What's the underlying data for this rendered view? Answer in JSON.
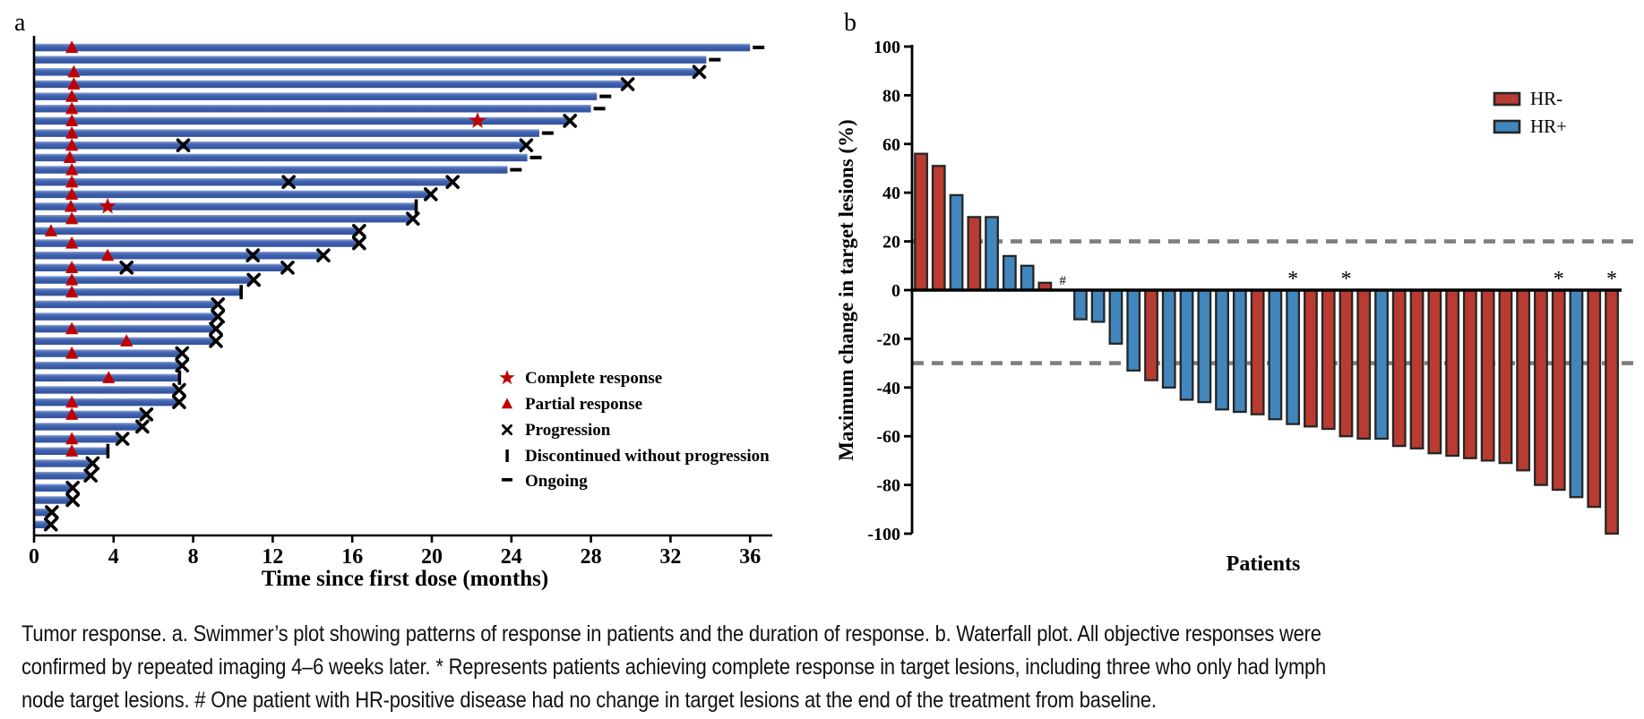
{
  "figure": {
    "panel_a_letter": "a",
    "panel_b_letter": "b"
  },
  "caption": {
    "lines": [
      "Tumor response. a. Swimmer’s plot showing patterns of response in patients and the duration of response. b. Waterfall plot. All objective responses were",
      "confirmed by repeated imaging 4–6 weeks later. * Represents patients achieving complete response in target lesions, including three who only had lymph",
      "node target lesions. # One patient with HR-positive disease had no change in target lesions at the end of the treatment from baseline."
    ]
  },
  "chart_data": [
    {
      "type": "swimmer",
      "panel": "a",
      "xlabel": "Time since first dose (months)",
      "xticks": [
        0,
        4,
        8,
        12,
        16,
        20,
        24,
        28,
        32,
        36
      ],
      "xlim": [
        0,
        37
      ],
      "bar_color": "#3a5ca9",
      "marker_red": "#c00000",
      "legend": [
        {
          "symbol": "star",
          "label": "Complete response"
        },
        {
          "symbol": "triangle",
          "label": "Partial response"
        },
        {
          "symbol": "x",
          "label": "Progression"
        },
        {
          "symbol": "bar",
          "label": "Discontinued without progression"
        },
        {
          "symbol": "dash",
          "label": "Ongoing"
        }
      ],
      "patients": [
        {
          "duration_months": 36.0,
          "end": "ongoing",
          "partial_response_at": [
            1.9
          ],
          "complete_response_at": [],
          "progression_at": []
        },
        {
          "duration_months": 33.8,
          "end": "ongoing",
          "partial_response_at": [],
          "complete_response_at": [],
          "progression_at": []
        },
        {
          "duration_months": 33.4,
          "end": "progression",
          "partial_response_at": [
            2.0
          ],
          "complete_response_at": [],
          "progression_at": []
        },
        {
          "duration_months": 29.8,
          "end": "progression",
          "partial_response_at": [
            2.0
          ],
          "complete_response_at": [],
          "progression_at": []
        },
        {
          "duration_months": 28.3,
          "end": "ongoing",
          "partial_response_at": [
            1.9
          ],
          "complete_response_at": [],
          "progression_at": []
        },
        {
          "duration_months": 28.0,
          "end": "ongoing",
          "partial_response_at": [
            1.9
          ],
          "complete_response_at": [],
          "progression_at": []
        },
        {
          "duration_months": 26.9,
          "end": "progression",
          "partial_response_at": [
            1.9
          ],
          "complete_response_at": [
            22.3
          ],
          "progression_at": []
        },
        {
          "duration_months": 25.4,
          "end": "ongoing",
          "partial_response_at": [
            1.9
          ],
          "complete_response_at": [],
          "progression_at": []
        },
        {
          "duration_months": 24.7,
          "end": "progression",
          "partial_response_at": [
            1.9
          ],
          "complete_response_at": [],
          "progression_at": [
            7.5
          ]
        },
        {
          "duration_months": 24.8,
          "end": "ongoing",
          "partial_response_at": [
            1.8
          ],
          "complete_response_at": [],
          "progression_at": []
        },
        {
          "duration_months": 23.8,
          "end": "ongoing",
          "partial_response_at": [
            1.9
          ],
          "complete_response_at": [],
          "progression_at": []
        },
        {
          "duration_months": 21.0,
          "end": "progression",
          "partial_response_at": [
            1.9
          ],
          "complete_response_at": [],
          "progression_at": [
            12.8
          ]
        },
        {
          "duration_months": 19.9,
          "end": "progression",
          "partial_response_at": [
            1.9
          ],
          "complete_response_at": [],
          "progression_at": []
        },
        {
          "duration_months": 19.2,
          "end": "discontinued",
          "partial_response_at": [
            1.85
          ],
          "complete_response_at": [
            3.7
          ],
          "progression_at": []
        },
        {
          "duration_months": 19.0,
          "end": "progression",
          "partial_response_at": [
            1.9
          ],
          "complete_response_at": [],
          "progression_at": []
        },
        {
          "duration_months": 16.3,
          "end": "progression",
          "partial_response_at": [
            0.85
          ],
          "complete_response_at": [],
          "progression_at": []
        },
        {
          "duration_months": 16.3,
          "end": "progression",
          "partial_response_at": [
            1.9
          ],
          "complete_response_at": [],
          "progression_at": []
        },
        {
          "duration_months": 14.5,
          "end": "progression",
          "partial_response_at": [
            3.7
          ],
          "complete_response_at": [],
          "progression_at": [
            11.0
          ]
        },
        {
          "duration_months": 12.7,
          "end": "progression",
          "partial_response_at": [
            1.9
          ],
          "complete_response_at": [],
          "progression_at": [
            4.65
          ]
        },
        {
          "duration_months": 11.0,
          "end": "progression",
          "partial_response_at": [
            1.9
          ],
          "complete_response_at": [],
          "progression_at": []
        },
        {
          "duration_months": 10.4,
          "end": "discontinued",
          "partial_response_at": [
            1.9
          ],
          "complete_response_at": [],
          "progression_at": []
        },
        {
          "duration_months": 9.2,
          "end": "progression",
          "partial_response_at": [],
          "complete_response_at": [],
          "progression_at": []
        },
        {
          "duration_months": 9.2,
          "end": "progression",
          "partial_response_at": [],
          "complete_response_at": [],
          "progression_at": []
        },
        {
          "duration_months": 9.1,
          "end": "progression",
          "partial_response_at": [
            1.9
          ],
          "complete_response_at": [],
          "progression_at": []
        },
        {
          "duration_months": 9.1,
          "end": "progression",
          "partial_response_at": [
            4.65
          ],
          "complete_response_at": [],
          "progression_at": []
        },
        {
          "duration_months": 7.4,
          "end": "progression",
          "partial_response_at": [
            1.9
          ],
          "complete_response_at": [],
          "progression_at": []
        },
        {
          "duration_months": 7.4,
          "end": "progression",
          "partial_response_at": [],
          "complete_response_at": [],
          "progression_at": []
        },
        {
          "duration_months": 7.3,
          "end": "discontinued",
          "partial_response_at": [
            3.75
          ],
          "complete_response_at": [],
          "progression_at": []
        },
        {
          "duration_months": 7.25,
          "end": "progression",
          "partial_response_at": [],
          "complete_response_at": [],
          "progression_at": []
        },
        {
          "duration_months": 7.25,
          "end": "progression",
          "partial_response_at": [
            1.9
          ],
          "complete_response_at": [],
          "progression_at": []
        },
        {
          "duration_months": 5.6,
          "end": "progression",
          "partial_response_at": [
            1.9
          ],
          "complete_response_at": [],
          "progression_at": []
        },
        {
          "duration_months": 5.4,
          "end": "progression",
          "partial_response_at": [],
          "complete_response_at": [],
          "progression_at": []
        },
        {
          "duration_months": 4.4,
          "end": "progression",
          "partial_response_at": [
            1.9
          ],
          "complete_response_at": [],
          "progression_at": []
        },
        {
          "duration_months": 3.7,
          "end": "discontinued",
          "partial_response_at": [
            1.9
          ],
          "complete_response_at": [],
          "progression_at": []
        },
        {
          "duration_months": 2.9,
          "end": "progression",
          "partial_response_at": [],
          "complete_response_at": [],
          "progression_at": []
        },
        {
          "duration_months": 2.8,
          "end": "progression",
          "partial_response_at": [],
          "complete_response_at": [],
          "progression_at": []
        },
        {
          "duration_months": 1.9,
          "end": "progression",
          "partial_response_at": [],
          "complete_response_at": [],
          "progression_at": []
        },
        {
          "duration_months": 1.9,
          "end": "progression",
          "partial_response_at": [],
          "complete_response_at": [],
          "progression_at": []
        },
        {
          "duration_months": 0.85,
          "end": "progression",
          "partial_response_at": [],
          "complete_response_at": [],
          "progression_at": []
        },
        {
          "duration_months": 0.8,
          "end": "progression",
          "partial_response_at": [],
          "complete_response_at": [],
          "progression_at": []
        }
      ]
    },
    {
      "type": "bar",
      "panel": "b",
      "title": "",
      "xlabel": "Patients",
      "ylabel": "Maximum change in target lesions (%)",
      "ylim": [
        -100,
        100
      ],
      "yticks": [
        100,
        80,
        60,
        40,
        20,
        0,
        -20,
        -40,
        -60,
        -80,
        -100
      ],
      "reference_lines": [
        20,
        -30
      ],
      "reference_line_color": "#7f7f7f",
      "legend": [
        {
          "label": "HR-",
          "color": "#b93b31"
        },
        {
          "label": "HR+",
          "color": "#4186bc"
        }
      ],
      "bar_outline_color": "#262626",
      "bars": [
        {
          "value": 56,
          "group": "HR-",
          "mark": ""
        },
        {
          "value": 51,
          "group": "HR-",
          "mark": ""
        },
        {
          "value": 39,
          "group": "HR+",
          "mark": ""
        },
        {
          "value": 30,
          "group": "HR-",
          "mark": ""
        },
        {
          "value": 30,
          "group": "HR+",
          "mark": ""
        },
        {
          "value": 14,
          "group": "HR+",
          "mark": ""
        },
        {
          "value": 10,
          "group": "HR+",
          "mark": ""
        },
        {
          "value": 3,
          "group": "HR-",
          "mark": ""
        },
        {
          "value": 0,
          "group": "HR+",
          "mark": "#"
        },
        {
          "value": -12,
          "group": "HR+",
          "mark": ""
        },
        {
          "value": -13,
          "group": "HR+",
          "mark": ""
        },
        {
          "value": -22,
          "group": "HR+",
          "mark": ""
        },
        {
          "value": -33,
          "group": "HR+",
          "mark": ""
        },
        {
          "value": -37,
          "group": "HR-",
          "mark": ""
        },
        {
          "value": -40,
          "group": "HR+",
          "mark": ""
        },
        {
          "value": -45,
          "group": "HR+",
          "mark": ""
        },
        {
          "value": -46,
          "group": "HR+",
          "mark": ""
        },
        {
          "value": -49,
          "group": "HR+",
          "mark": ""
        },
        {
          "value": -50,
          "group": "HR+",
          "mark": ""
        },
        {
          "value": -51,
          "group": "HR-",
          "mark": ""
        },
        {
          "value": -53,
          "group": "HR+",
          "mark": ""
        },
        {
          "value": -55,
          "group": "HR+",
          "mark": "*"
        },
        {
          "value": -56,
          "group": "HR-",
          "mark": ""
        },
        {
          "value": -57,
          "group": "HR-",
          "mark": ""
        },
        {
          "value": -60,
          "group": "HR-",
          "mark": "*"
        },
        {
          "value": -61,
          "group": "HR-",
          "mark": ""
        },
        {
          "value": -61,
          "group": "HR+",
          "mark": ""
        },
        {
          "value": -64,
          "group": "HR-",
          "mark": ""
        },
        {
          "value": -65,
          "group": "HR-",
          "mark": ""
        },
        {
          "value": -67,
          "group": "HR-",
          "mark": ""
        },
        {
          "value": -68,
          "group": "HR-",
          "mark": ""
        },
        {
          "value": -69,
          "group": "HR-",
          "mark": ""
        },
        {
          "value": -70,
          "group": "HR-",
          "mark": ""
        },
        {
          "value": -71,
          "group": "HR-",
          "mark": ""
        },
        {
          "value": -74,
          "group": "HR-",
          "mark": ""
        },
        {
          "value": -80,
          "group": "HR-",
          "mark": ""
        },
        {
          "value": -82,
          "group": "HR-",
          "mark": "*"
        },
        {
          "value": -85,
          "group": "HR+",
          "mark": ""
        },
        {
          "value": -89,
          "group": "HR-",
          "mark": ""
        },
        {
          "value": -100,
          "group": "HR-",
          "mark": "*"
        }
      ]
    }
  ]
}
